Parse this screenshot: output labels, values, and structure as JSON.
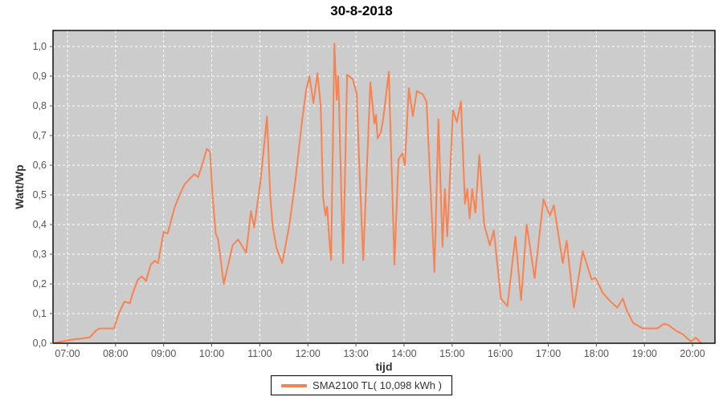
{
  "chart_data": {
    "type": "line",
    "title": "30-8-2018",
    "xlabel": "tijd",
    "ylabel": "Watt/Wp",
    "xlim": [
      "06:42",
      "20:28"
    ],
    "ylim": [
      0,
      1.054
    ],
    "grid": true,
    "legend_position": "bottom",
    "plot_bg": "#CCCCCC",
    "grid_color": "#FFFFFF",
    "border_color": "#000000",
    "tick_color": "#555555",
    "x_ticks": [
      "07:00",
      "08:00",
      "09:00",
      "10:00",
      "11:00",
      "12:00",
      "13:00",
      "14:00",
      "15:00",
      "16:00",
      "17:00",
      "18:00",
      "19:00",
      "20:00"
    ],
    "y_ticks": [
      {
        "value": 0.0,
        "label": "0,0"
      },
      {
        "value": 0.1,
        "label": "0,1"
      },
      {
        "value": 0.2,
        "label": "0,2"
      },
      {
        "value": 0.3,
        "label": "0,3"
      },
      {
        "value": 0.4,
        "label": "0,4"
      },
      {
        "value": 0.5,
        "label": "0,5"
      },
      {
        "value": 0.6,
        "label": "0,6"
      },
      {
        "value": 0.7,
        "label": "0,7"
      },
      {
        "value": 0.8,
        "label": "0,8"
      },
      {
        "value": 0.9,
        "label": "0,9"
      },
      {
        "value": 1.0,
        "label": "1,0"
      }
    ],
    "series": [
      {
        "name": "SMA2100 TL( 10,098 kWh )",
        "color": "#FA8250",
        "points": [
          [
            "06:45",
            0.002
          ],
          [
            "07:00",
            0.01
          ],
          [
            "07:15",
            0.015
          ],
          [
            "07:28",
            0.02
          ],
          [
            "07:36",
            0.044
          ],
          [
            "07:40",
            0.05
          ],
          [
            "07:58",
            0.05
          ],
          [
            "08:04",
            0.1
          ],
          [
            "08:11",
            0.14
          ],
          [
            "08:18",
            0.135
          ],
          [
            "08:21",
            0.165
          ],
          [
            "08:28",
            0.215
          ],
          [
            "08:33",
            0.225
          ],
          [
            "08:38",
            0.21
          ],
          [
            "08:44",
            0.265
          ],
          [
            "08:49",
            0.278
          ],
          [
            "08:53",
            0.27
          ],
          [
            "09:00",
            0.375
          ],
          [
            "09:05",
            0.37
          ],
          [
            "09:14",
            0.46
          ],
          [
            "09:20",
            0.5
          ],
          [
            "09:26",
            0.535
          ],
          [
            "09:33",
            0.555
          ],
          [
            "09:38",
            0.57
          ],
          [
            "09:43",
            0.56
          ],
          [
            "09:48",
            0.6
          ],
          [
            "09:54",
            0.655
          ],
          [
            "09:58",
            0.645
          ],
          [
            "10:01",
            0.5
          ],
          [
            "10:05",
            0.37
          ],
          [
            "10:08",
            0.35
          ],
          [
            "10:15",
            0.2
          ],
          [
            "10:21",
            0.27
          ],
          [
            "10:26",
            0.33
          ],
          [
            "10:33",
            0.35
          ],
          [
            "10:43",
            0.305
          ],
          [
            "10:49",
            0.445
          ],
          [
            "10:53",
            0.39
          ],
          [
            "11:01",
            0.55
          ],
          [
            "11:09",
            0.765
          ],
          [
            "11:13",
            0.5
          ],
          [
            "11:16",
            0.395
          ],
          [
            "11:21",
            0.32
          ],
          [
            "11:28",
            0.27
          ],
          [
            "11:37",
            0.4
          ],
          [
            "11:44",
            0.54
          ],
          [
            "11:53",
            0.755
          ],
          [
            "11:58",
            0.855
          ],
          [
            "12:02",
            0.9
          ],
          [
            "12:07",
            0.81
          ],
          [
            "12:12",
            0.91
          ],
          [
            "12:16",
            0.8
          ],
          [
            "12:19",
            0.49
          ],
          [
            "12:22",
            0.43
          ],
          [
            "12:24",
            0.46
          ],
          [
            "12:27",
            0.34
          ],
          [
            "12:29",
            0.28
          ],
          [
            "12:33",
            1.01
          ],
          [
            "12:36",
            0.82
          ],
          [
            "12:38",
            0.9
          ],
          [
            "12:44",
            0.27
          ],
          [
            "12:49",
            0.905
          ],
          [
            "12:56",
            0.89
          ],
          [
            "13:01",
            0.84
          ],
          [
            "13:04",
            0.61
          ],
          [
            "13:09",
            0.28
          ],
          [
            "13:18",
            0.88
          ],
          [
            "13:23",
            0.74
          ],
          [
            "13:25",
            0.77
          ],
          [
            "13:27",
            0.69
          ],
          [
            "13:31",
            0.71
          ],
          [
            "13:34",
            0.755
          ],
          [
            "13:41",
            0.915
          ],
          [
            "13:48",
            0.265
          ],
          [
            "13:53",
            0.62
          ],
          [
            "13:58",
            0.64
          ],
          [
            "14:01",
            0.6
          ],
          [
            "14:06",
            0.86
          ],
          [
            "14:11",
            0.765
          ],
          [
            "14:16",
            0.85
          ],
          [
            "14:23",
            0.84
          ],
          [
            "14:28",
            0.815
          ],
          [
            "14:38",
            0.24
          ],
          [
            "14:43",
            0.755
          ],
          [
            "14:48",
            0.325
          ],
          [
            "14:51",
            0.52
          ],
          [
            "14:54",
            0.36
          ],
          [
            "15:01",
            0.785
          ],
          [
            "15:06",
            0.745
          ],
          [
            "15:11",
            0.815
          ],
          [
            "15:16",
            0.47
          ],
          [
            "15:19",
            0.52
          ],
          [
            "15:22",
            0.42
          ],
          [
            "15:25",
            0.52
          ],
          [
            "15:29",
            0.44
          ],
          [
            "15:34",
            0.635
          ],
          [
            "15:40",
            0.4
          ],
          [
            "15:47",
            0.33
          ],
          [
            "15:52",
            0.38
          ],
          [
            "16:01",
            0.15
          ],
          [
            "16:09",
            0.125
          ],
          [
            "16:19",
            0.36
          ],
          [
            "16:26",
            0.145
          ],
          [
            "16:33",
            0.4
          ],
          [
            "16:43",
            0.22
          ],
          [
            "16:54",
            0.485
          ],
          [
            "17:02",
            0.43
          ],
          [
            "17:07",
            0.465
          ],
          [
            "17:18",
            0.27
          ],
          [
            "17:23",
            0.345
          ],
          [
            "17:32",
            0.12
          ],
          [
            "17:43",
            0.31
          ],
          [
            "17:54",
            0.215
          ],
          [
            "17:59",
            0.22
          ],
          [
            "18:08",
            0.17
          ],
          [
            "18:16",
            0.145
          ],
          [
            "18:26",
            0.12
          ],
          [
            "18:33",
            0.15
          ],
          [
            "18:38",
            0.11
          ],
          [
            "18:46",
            0.068
          ],
          [
            "18:58",
            0.05
          ],
          [
            "19:16",
            0.05
          ],
          [
            "19:24",
            0.065
          ],
          [
            "19:29",
            0.063
          ],
          [
            "19:39",
            0.043
          ],
          [
            "19:48",
            0.03
          ],
          [
            "19:54",
            0.015
          ],
          [
            "19:58",
            0.006
          ],
          [
            "20:04",
            0.019
          ],
          [
            "20:11",
            0.0
          ]
        ]
      }
    ]
  }
}
